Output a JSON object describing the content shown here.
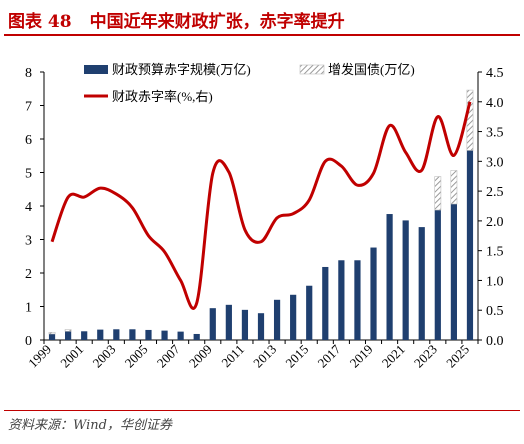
{
  "figure": {
    "label": "图表 48",
    "title": "中国近年来财政扩张，赤字率提升",
    "source": "资料来源：Wind，华创证券"
  },
  "colors": {
    "bar": "#1f3f6f",
    "line": "#c00000",
    "hatch": "#9a9a9a",
    "title": "#c00000"
  },
  "chart_data": {
    "type": "bar",
    "x": [
      "1999",
      "2000",
      "2001",
      "2002",
      "2003",
      "2004",
      "2005",
      "2006",
      "2007",
      "2008",
      "2009",
      "2010",
      "2011",
      "2012",
      "2013",
      "2014",
      "2015",
      "2016",
      "2017",
      "2018",
      "2019",
      "2020",
      "2021",
      "2022",
      "2023",
      "2024",
      "2025"
    ],
    "xtick_labels": [
      "1999",
      "2001",
      "2003",
      "2005",
      "2007",
      "2009",
      "2011",
      "2013",
      "2015",
      "2017",
      "2019",
      "2021",
      "2023",
      "2025"
    ],
    "series": [
      {
        "name": "财政预算赤字规模(万亿)",
        "type": "bar",
        "axis": "left",
        "values": [
          0.18,
          0.26,
          0.26,
          0.31,
          0.32,
          0.32,
          0.3,
          0.28,
          0.25,
          0.18,
          0.95,
          1.05,
          0.9,
          0.8,
          1.2,
          1.35,
          1.62,
          2.18,
          2.38,
          2.38,
          2.76,
          3.76,
          3.57,
          3.37,
          3.88,
          4.06,
          5.66
        ]
      },
      {
        "name": "增发国债(万亿)",
        "type": "bar-stacked",
        "axis": "left",
        "values": [
          0.05,
          0.05,
          0,
          0,
          0,
          0,
          0,
          0,
          0,
          0,
          0,
          0,
          0,
          0,
          0,
          0,
          0,
          0,
          0,
          0,
          0,
          0,
          0,
          0,
          1.0,
          1.0,
          1.8
        ]
      },
      {
        "name": "财政赤字率(%,右)",
        "type": "line",
        "axis": "right",
        "values": [
          1.65,
          2.4,
          2.4,
          2.55,
          2.45,
          2.22,
          1.75,
          1.48,
          1.0,
          0.62,
          2.8,
          2.82,
          1.85,
          1.65,
          2.05,
          2.12,
          2.35,
          3.0,
          2.92,
          2.6,
          2.8,
          3.6,
          3.15,
          2.85,
          3.75,
          3.1,
          4.0
        ]
      }
    ],
    "yleft": {
      "min": 0,
      "max": 8,
      "ticks": [
        "0",
        "1",
        "2",
        "3",
        "4",
        "5",
        "6",
        "7",
        "8"
      ]
    },
    "yright": {
      "min": 0,
      "max": 4.5,
      "ticks": [
        "0.0",
        "0.5",
        "1.0",
        "1.5",
        "2.0",
        "2.5",
        "3.0",
        "3.5",
        "4.0",
        "4.5"
      ]
    },
    "legend_position": "top",
    "grid": false
  }
}
